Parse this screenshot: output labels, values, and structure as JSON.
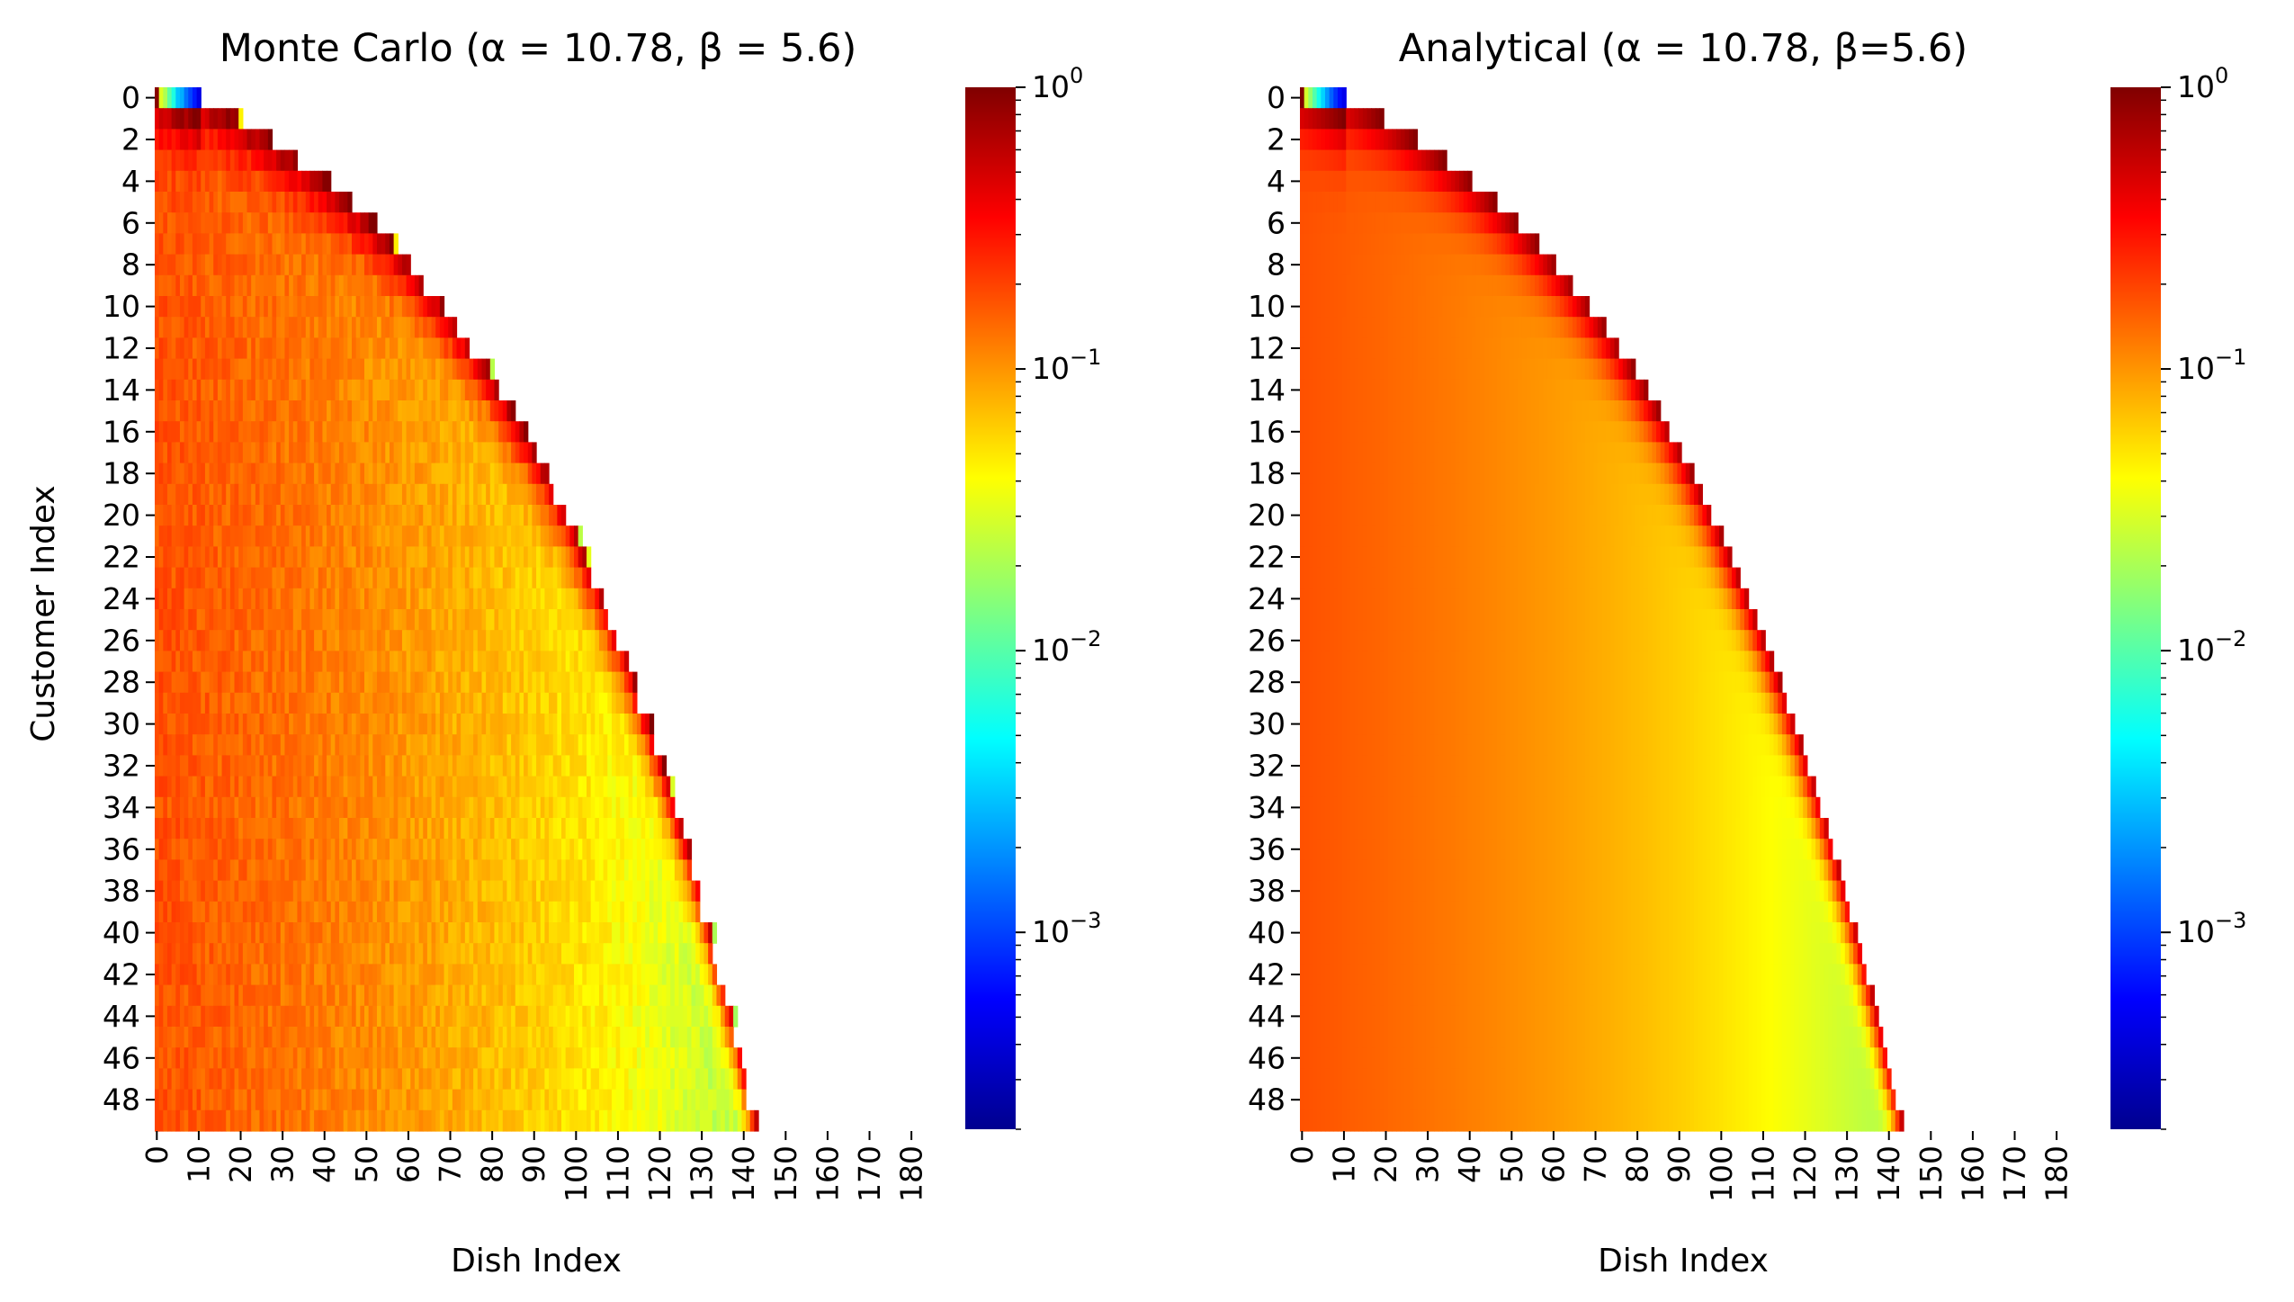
{
  "chart_data": [
    {
      "type": "heatmap",
      "title": "Monte Carlo (α = 10.78, β = 5.6)",
      "xlabel": "Dish Index",
      "ylabel": "Customer Index",
      "x_range": [
        0,
        182
      ],
      "y_range": [
        0,
        49
      ],
      "x_ticks": [
        "0",
        "10",
        "20",
        "30",
        "40",
        "50",
        "60",
        "70",
        "80",
        "90",
        "100",
        "110",
        "120",
        "130",
        "140",
        "150",
        "160",
        "170",
        "180"
      ],
      "y_ticks": [
        "0",
        "2",
        "4",
        "6",
        "8",
        "10",
        "12",
        "14",
        "16",
        "18",
        "20",
        "22",
        "24",
        "26",
        "28",
        "30",
        "32",
        "34",
        "36",
        "38",
        "40",
        "42",
        "44",
        "46",
        "48"
      ],
      "colorscale": "jet",
      "color_scale_type": "log",
      "colorbar_range": [
        0.0002,
        1
      ],
      "colorbar_ticks": [
        {
          "base": "10",
          "exp": "0",
          "value": 1
        },
        {
          "base": "10",
          "exp": "−1",
          "value": 0.1
        },
        {
          "base": "10",
          "exp": "−2",
          "value": 0.01
        },
        {
          "base": "10",
          "exp": "−3",
          "value": 0.001
        }
      ],
      "model": {
        "alpha": 10.78,
        "beta": 5.6,
        "cells": "probability that customer i takes dish k; nonzero for k below the cumulative count of dishes introduced up to customer i",
        "noisy": true
      }
    },
    {
      "type": "heatmap",
      "title": "Analytical (α = 10.78, β=5.6)",
      "xlabel": "Dish Index",
      "ylabel": "",
      "x_range": [
        0,
        182
      ],
      "y_range": [
        0,
        49
      ],
      "x_ticks": [
        "0",
        "10",
        "20",
        "30",
        "40",
        "50",
        "60",
        "70",
        "80",
        "90",
        "100",
        "110",
        "120",
        "130",
        "140",
        "150",
        "160",
        "170",
        "180"
      ],
      "y_ticks": [
        "0",
        "2",
        "4",
        "6",
        "8",
        "10",
        "12",
        "14",
        "16",
        "18",
        "20",
        "22",
        "24",
        "26",
        "28",
        "30",
        "32",
        "34",
        "36",
        "38",
        "40",
        "42",
        "44",
        "46",
        "48"
      ],
      "colorscale": "jet",
      "color_scale_type": "log",
      "colorbar_range": [
        0.0002,
        1
      ],
      "colorbar_ticks": [
        {
          "base": "10",
          "exp": "0",
          "value": 1
        },
        {
          "base": "10",
          "exp": "−1",
          "value": 0.1
        },
        {
          "base": "10",
          "exp": "−2",
          "value": 0.01
        },
        {
          "base": "10",
          "exp": "−3",
          "value": 0.001
        }
      ],
      "model": {
        "alpha": 10.78,
        "beta": 5.6,
        "cells": "probability that customer i takes dish k; nonzero for k below the cumulative count of dishes introduced up to customer i",
        "noisy": false
      }
    }
  ]
}
